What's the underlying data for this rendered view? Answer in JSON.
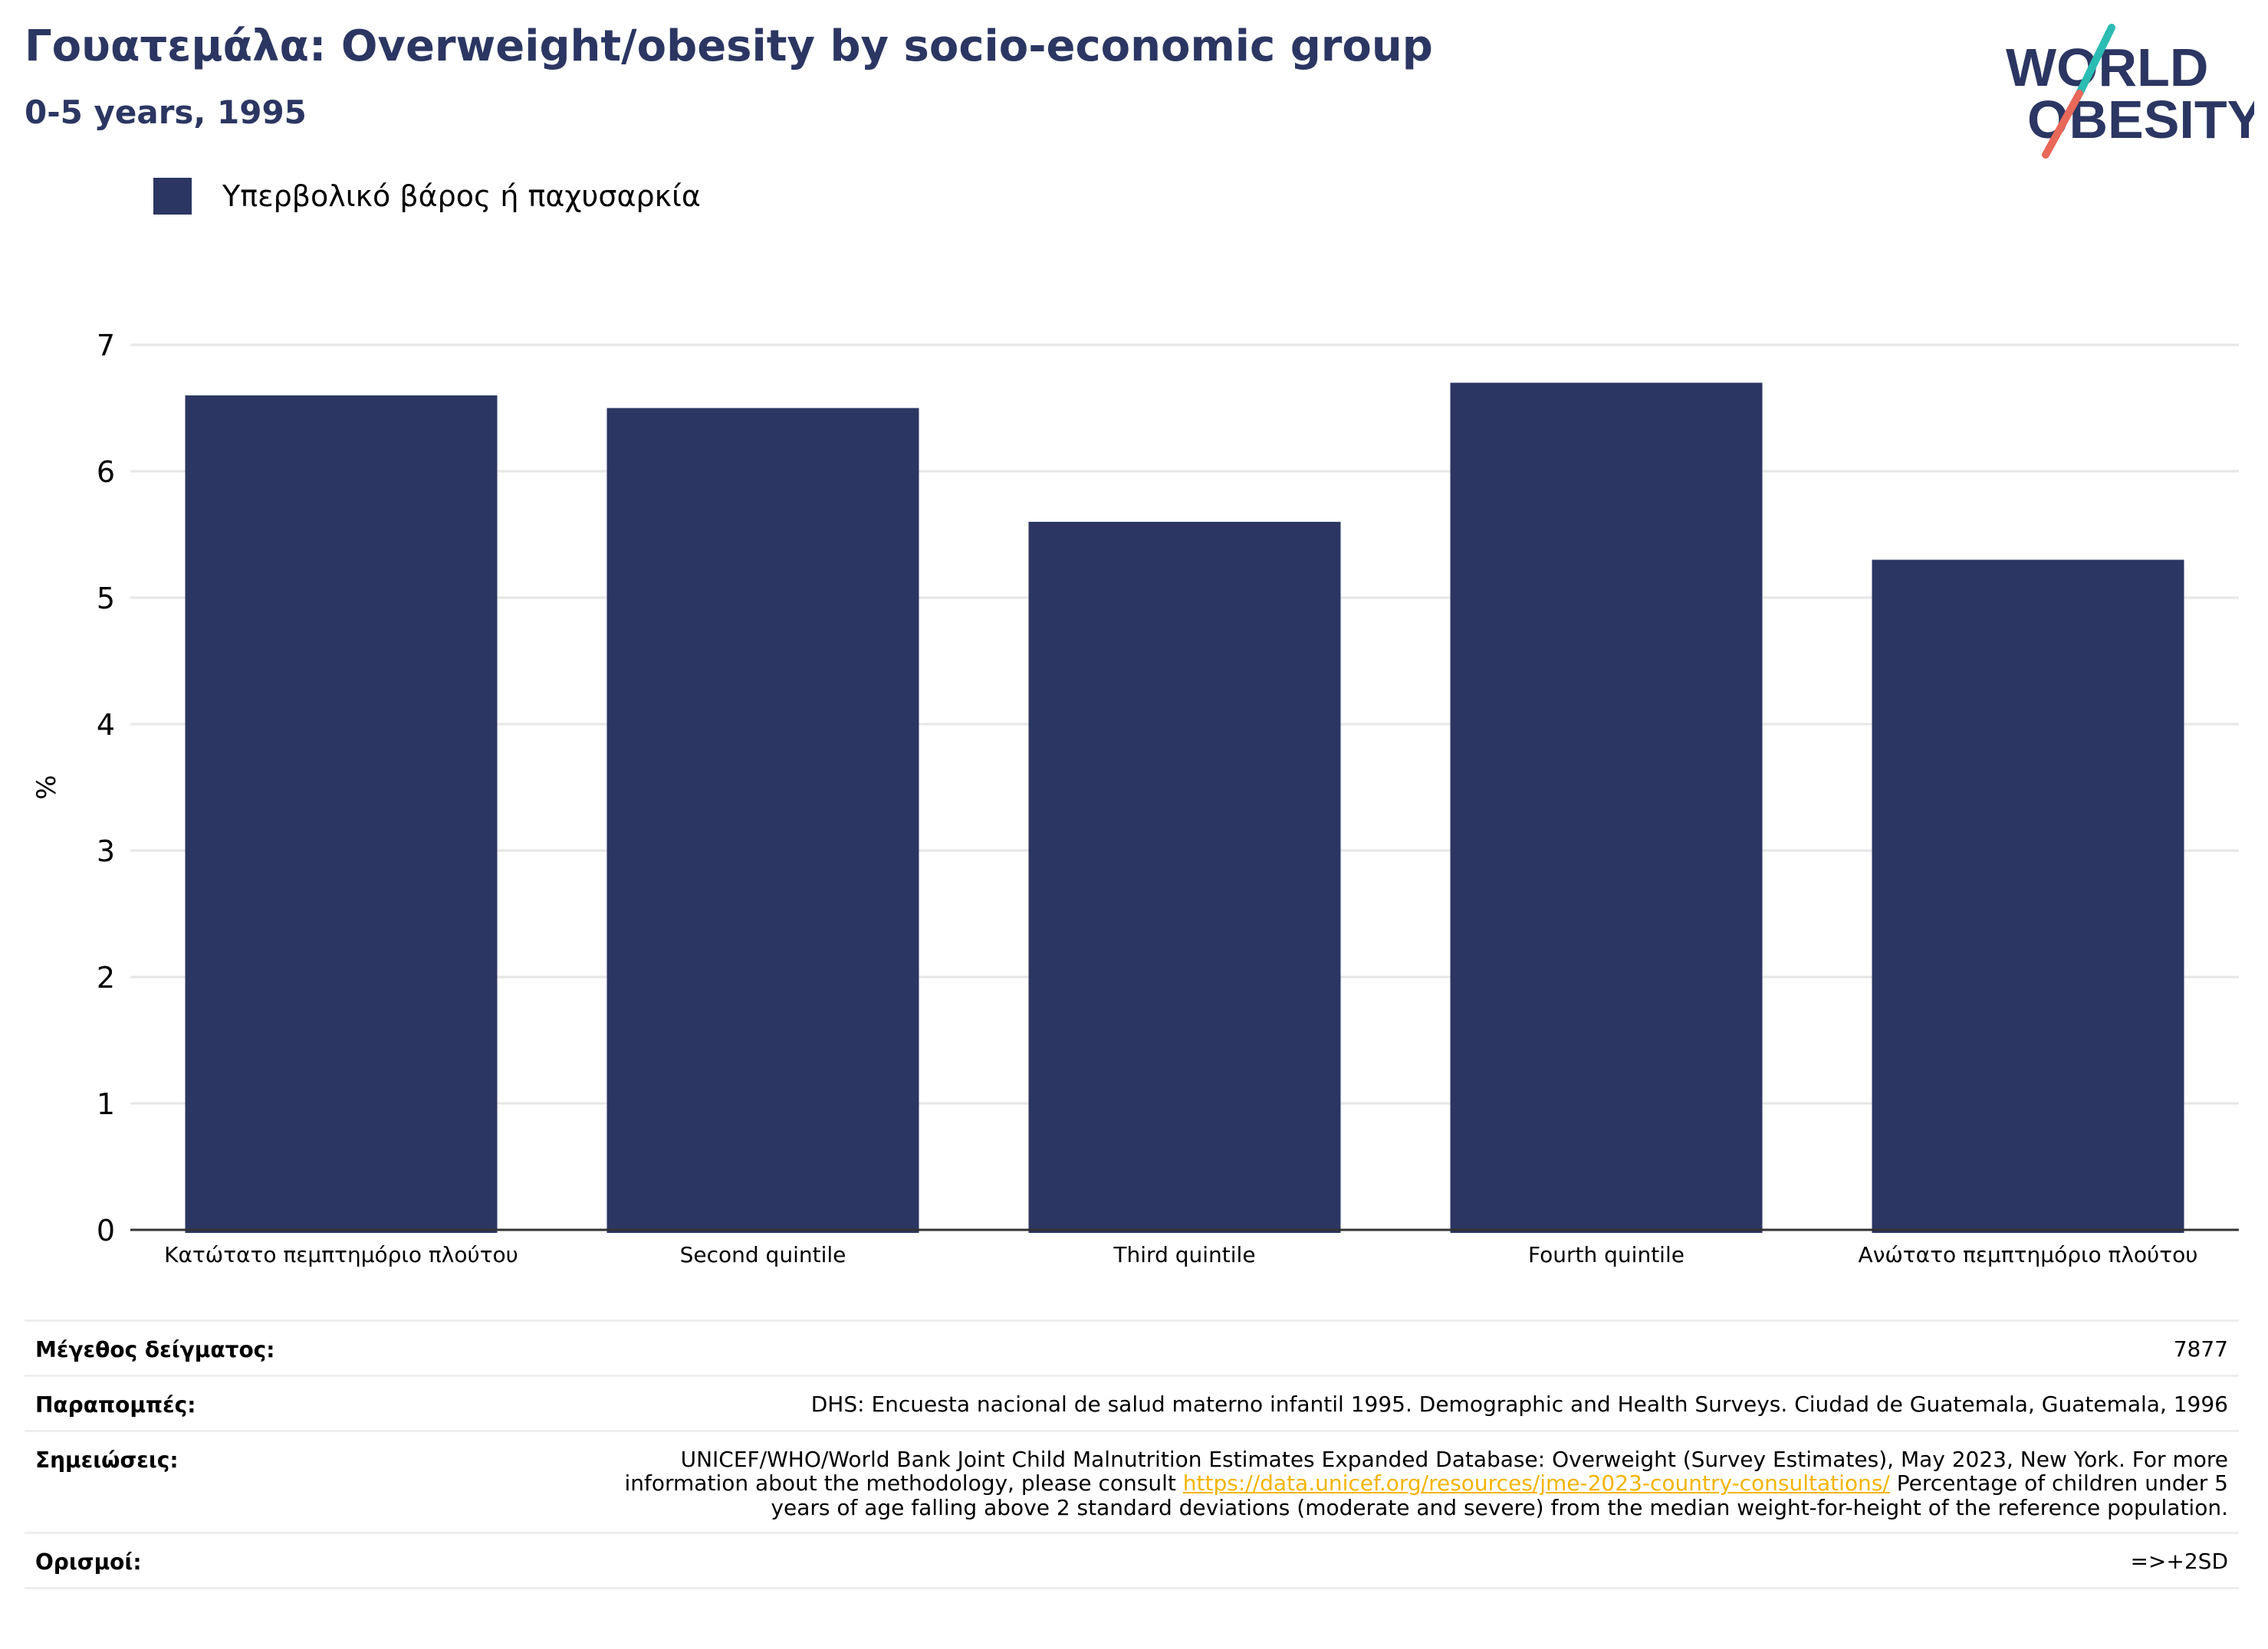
{
  "header": {
    "title": "Γουατεμάλα: Overweight/obesity by socio-economic group",
    "subtitle": "0-5 years, 1995"
  },
  "logo": {
    "line1": "WORLD",
    "line2": "OBESITY",
    "accent_teal": "#2bbcb3",
    "accent_coral": "#e8685a"
  },
  "colors": {
    "bar": "#2b3662",
    "grid": "#e6e6e6",
    "axis": "#333333"
  },
  "chart_data": {
    "type": "bar",
    "categories": [
      "Κατώτατο πεμπτημόριο πλούτου",
      "Second quintile",
      "Third quintile",
      "Fourth quintile",
      "Ανώτατο πεμπτημόριο πλούτου"
    ],
    "series": [
      {
        "name": "Υπερβολικό βάρος ή παχυσαρκία",
        "values": [
          6.6,
          6.5,
          5.6,
          6.7,
          5.3
        ]
      }
    ],
    "ylabel": "%",
    "ylim": [
      0,
      7
    ],
    "yticks": [
      0,
      1,
      2,
      3,
      4,
      5,
      6,
      7
    ],
    "grid": true,
    "legend": "top-left"
  },
  "info": {
    "sample_label": "Μέγεθος δείγματος:",
    "sample_value": "7877",
    "refs_label": "Παραπομπές:",
    "refs_value": "DHS: Encuesta nacional de salud materno infantil 1995. Demographic and Health Surveys. Ciudad de Guatemala, Guatemala, 1996",
    "notes_label": "Σημειώσεις:",
    "notes_pre": "UNICEF/WHO/World Bank Joint Child Malnutrition Estimates Expanded Database: Overweight (Survey Estimates), May 2023, New York. For more information about the methodology, please consult ",
    "notes_link": "https://data.unicef.org/resources/jme-2023-country-consultations/",
    "notes_post": " Percentage of children under 5 years of age falling above 2 standard deviations (moderate and severe) from the median weight-for-height of the reference population.",
    "defs_label": "Ορισμοί:",
    "defs_value": "=>+2SD"
  }
}
